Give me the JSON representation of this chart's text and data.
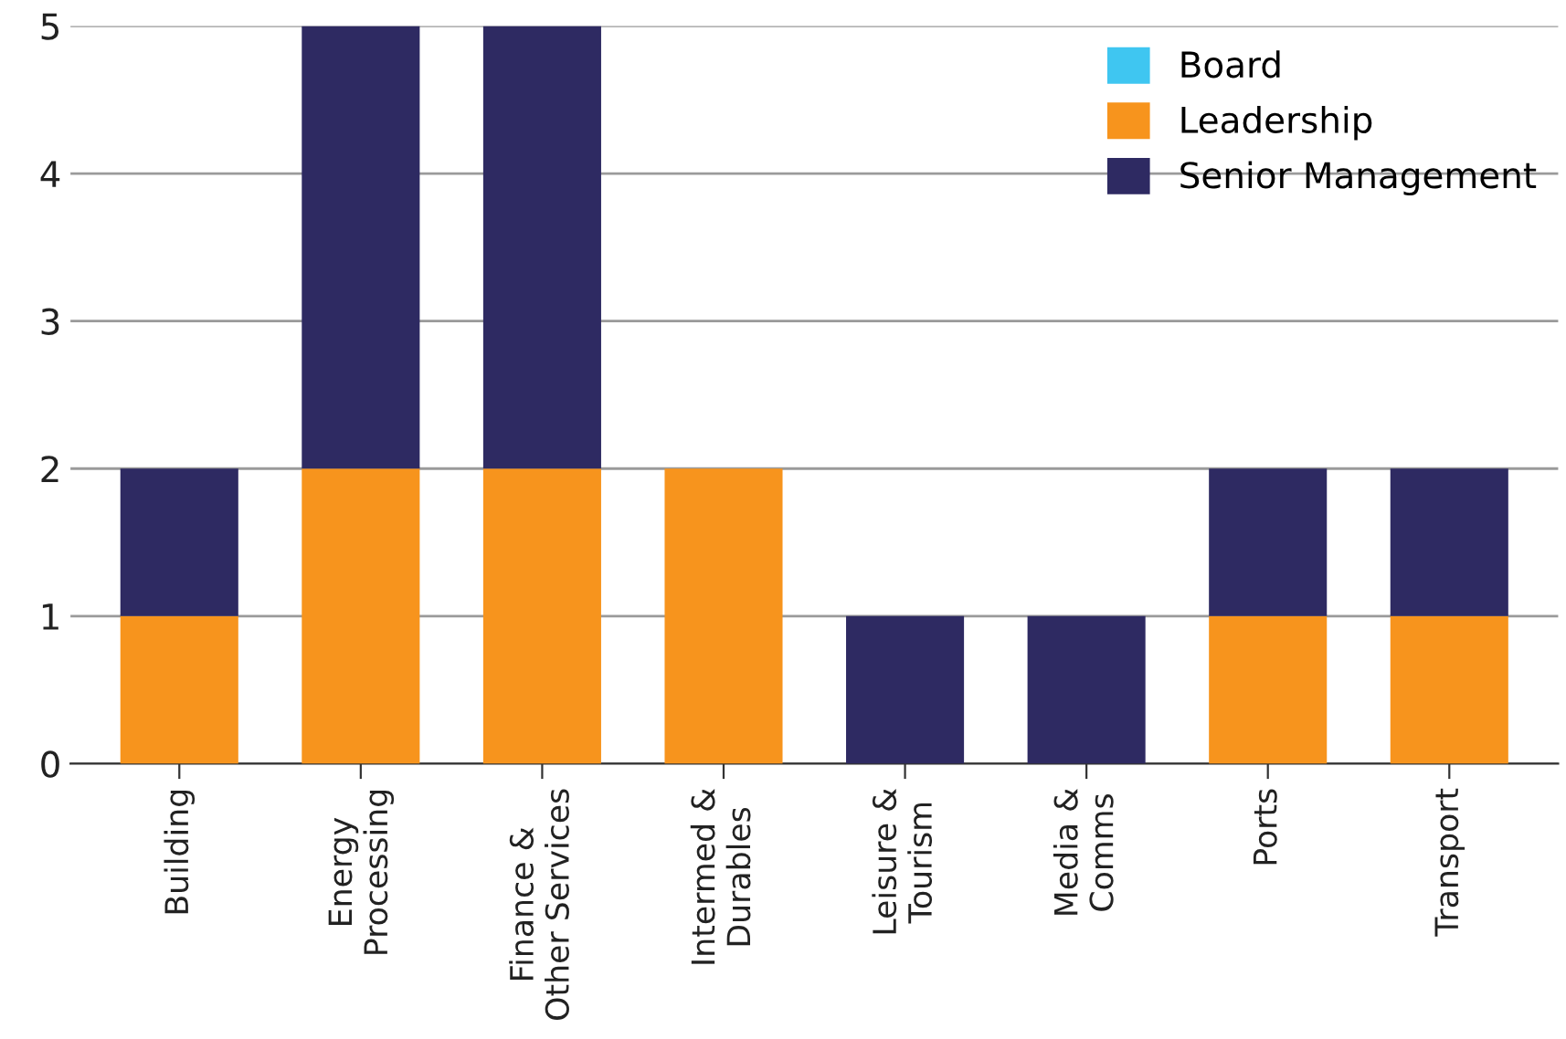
{
  "chart_data": {
    "type": "bar",
    "stacked": true,
    "categories": [
      "Building",
      "Energy\nProcessing",
      "Finance &\nOther Services",
      "Intermed &\nDurables",
      "Leisure &\nTourism",
      "Media &\nComms",
      "Ports",
      "Transport"
    ],
    "series": [
      {
        "name": "Board",
        "color": "#3fc6f1",
        "values": [
          0,
          0,
          0,
          0,
          0,
          0,
          0,
          0
        ]
      },
      {
        "name": "Leadership",
        "color": "#f7941d",
        "values": [
          1,
          2,
          2,
          2,
          0,
          0,
          1,
          1
        ]
      },
      {
        "name": "Senior Management",
        "color": "#2e2a62",
        "values": [
          1,
          3,
          3,
          0,
          1,
          1,
          1,
          1
        ]
      }
    ],
    "ylim": [
      0,
      5
    ],
    "yticks": [
      0,
      1,
      2,
      3,
      4,
      5
    ],
    "grid": "y",
    "legend": "top right"
  }
}
